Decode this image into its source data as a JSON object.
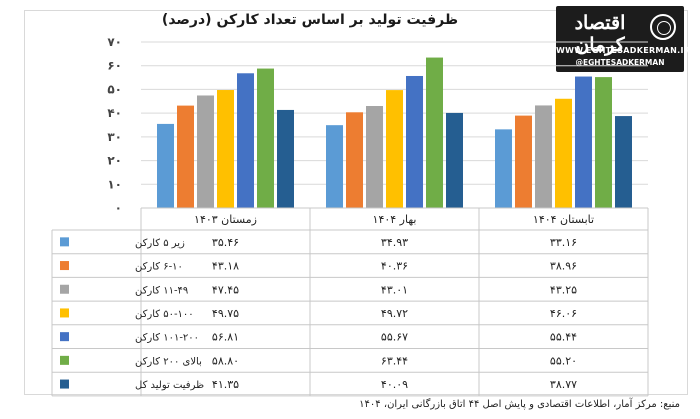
{
  "title": "ظرفیت تولید بر اساس تعداد کارکن (درصد)",
  "logo": {
    "name": "اقتصاد کرمان",
    "url": "WWW.EGHTESADKERMAN.IR",
    "handle": "@EGHTESADKERMAN"
  },
  "source": "منبع: مرکز آمار، اطلاعات اقتصادی و پایش اصل ۴۴ اتاق بازرگانی ایران، ۱۴۰۴",
  "chart_data": {
    "type": "bar",
    "categories": [
      "زمستان ۱۴۰۳",
      "بهار ۱۴۰۴",
      "تابستان ۱۴۰۴"
    ],
    "ylim": [
      0,
      70
    ],
    "yticks": [
      0,
      10,
      20,
      30,
      40,
      50,
      60,
      70
    ],
    "ytick_labels": [
      "۰",
      "۱۰",
      "۲۰",
      "۳۰",
      "۴۰",
      "۵۰",
      "۶۰",
      "۷۰"
    ],
    "grid": true,
    "legend": "table-left",
    "series": [
      {
        "name": "زیر ۵ کارکن",
        "color": "#5b9bd5",
        "values": [
          35.46,
          34.93,
          33.16
        ],
        "labels": [
          "۳۵.۴۶",
          "۳۴.۹۳",
          "۳۳.۱۶"
        ]
      },
      {
        "name": "۶-۱۰ کارکن",
        "color": "#ed7d31",
        "values": [
          43.18,
          40.36,
          38.96
        ],
        "labels": [
          "۴۳.۱۸",
          "۴۰.۳۶",
          "۳۸.۹۶"
        ]
      },
      {
        "name": "۱۱-۴۹ کارکن",
        "color": "#a5a5a5",
        "values": [
          47.45,
          43.01,
          43.25
        ],
        "labels": [
          "۴۷.۴۵",
          "۴۳.۰۱",
          "۴۳.۲۵"
        ]
      },
      {
        "name": "۵۰-۱۰۰ کارکن",
        "color": "#ffc000",
        "values": [
          49.75,
          49.72,
          46.06
        ],
        "labels": [
          "۴۹.۷۵",
          "۴۹.۷۲",
          "۴۶.۰۶"
        ]
      },
      {
        "name": "۱۰۱-۲۰۰ کارکن",
        "color": "#4472c4",
        "values": [
          56.81,
          55.67,
          55.44
        ],
        "labels": [
          "۵۶.۸۱",
          "۵۵.۶۷",
          "۵۵.۴۴"
        ]
      },
      {
        "name": "بالای ۲۰۰ کارکن",
        "color": "#70ad47",
        "values": [
          58.8,
          63.44,
          55.2
        ],
        "labels": [
          "۵۸.۸۰",
          "۶۳.۴۴",
          "۵۵.۲۰"
        ]
      },
      {
        "name": "ظرفیت تولید کل",
        "color": "#255e91",
        "values": [
          41.35,
          40.09,
          38.77
        ],
        "labels": [
          "۴۱.۳۵",
          "۴۰.۰۹",
          "۳۸.۷۷"
        ]
      }
    ]
  }
}
